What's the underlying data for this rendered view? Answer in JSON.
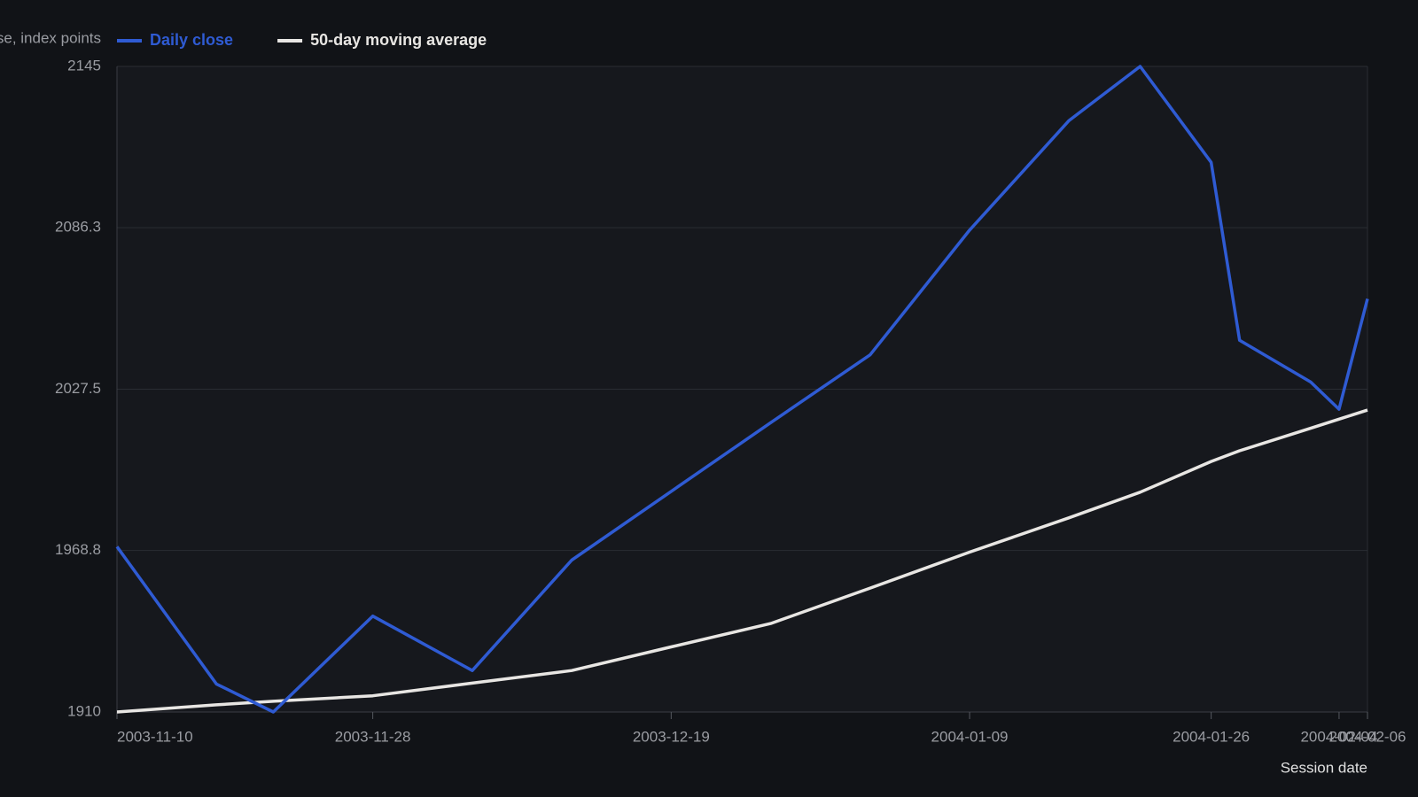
{
  "chart_data": {
    "type": "line",
    "y_label": "Close, index points",
    "x_label": "Session date",
    "x": [
      "2003-11-10",
      "2003-11-17",
      "2003-11-21",
      "2003-11-28",
      "2003-12-05",
      "2003-12-12",
      "2003-12-19",
      "2003-12-26",
      "2004-01-02",
      "2004-01-09",
      "2004-01-16",
      "2004-01-21",
      "2004-01-26",
      "2004-01-28",
      "2004-02-02",
      "2004-02-04",
      "2004-02-06"
    ],
    "series": [
      {
        "name": "Daily close",
        "color": "#2f5bd3",
        "values": [
          1970.2,
          1920.2,
          1910,
          1944.9,
          1925.1,
          1965.3,
          1990.3,
          2015.3,
          2040.0,
          2085.4,
          2125.3,
          2145,
          2110.1,
          2045.3,
          2030.1,
          2020.2,
          2060.4
        ]
      },
      {
        "name": "50-day moving average",
        "color": "#e8e6e3",
        "values": [
          1910,
          1912.6,
          1913.9,
          1915.9,
          1920.5,
          1925.1,
          1933.7,
          1942.2,
          1955.1,
          1968.2,
          1980.7,
          1990.0,
          2001.2,
          2005.1,
          2013.3,
          2016.6,
          2019.9
        ]
      }
    ],
    "xlim": [
      "2003-11-10",
      "2004-02-06"
    ],
    "xticks": [
      "2003-11-10",
      "2003-11-28",
      "2003-12-19",
      "2004-01-09",
      "2004-01-26",
      "2004-02-04",
      "2004-02-06"
    ],
    "ylim": [
      1910,
      2145
    ],
    "yticks": [
      1910,
      1968.8,
      2027.5,
      2086.3,
      2145
    ],
    "grid": true,
    "legend": "top"
  }
}
